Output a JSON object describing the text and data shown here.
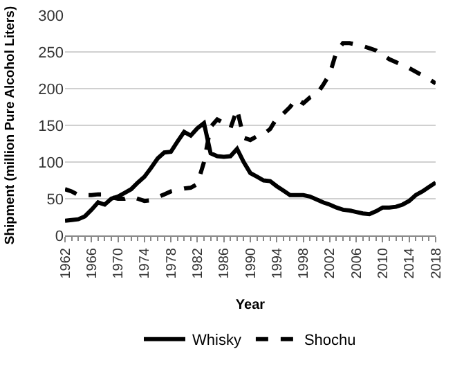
{
  "chart_data": {
    "type": "line",
    "xlabel": "Year",
    "ylabel": "Shipment (million Pure Alcohol Liters)",
    "x": [
      1962,
      1963,
      1964,
      1965,
      1966,
      1967,
      1968,
      1969,
      1970,
      1971,
      1972,
      1973,
      1974,
      1975,
      1976,
      1977,
      1978,
      1979,
      1980,
      1981,
      1982,
      1983,
      1984,
      1985,
      1986,
      1987,
      1988,
      1989,
      1990,
      1991,
      1992,
      1993,
      1994,
      1995,
      1996,
      1997,
      1998,
      1999,
      2000,
      2001,
      2002,
      2003,
      2004,
      2005,
      2006,
      2007,
      2008,
      2009,
      2010,
      2011,
      2012,
      2013,
      2014,
      2015,
      2016,
      2017,
      2018
    ],
    "series": [
      {
        "name": "Whisky",
        "color": "#000000",
        "line_style": "solid",
        "values": [
          20,
          21,
          22,
          26,
          35,
          45,
          42,
          50,
          53,
          58,
          63,
          72,
          80,
          92,
          105,
          113,
          114,
          128,
          141,
          136,
          146,
          153,
          112,
          108,
          107,
          108,
          118,
          100,
          85,
          80,
          75,
          74,
          67,
          61,
          55,
          55,
          55,
          53,
          49,
          45,
          42,
          38,
          35,
          34,
          32,
          30,
          29,
          33,
          38,
          38,
          39,
          42,
          47,
          55,
          60,
          66,
          72
        ]
      },
      {
        "name": "Shochu",
        "color": "#000000",
        "line_style": "dashed",
        "values": [
          63,
          60,
          55,
          55,
          55,
          56,
          56,
          52,
          50,
          50,
          53,
          50,
          47,
          48,
          52,
          56,
          60,
          62,
          64,
          65,
          70,
          100,
          148,
          158,
          153,
          146,
          172,
          133,
          130,
          135,
          138,
          145,
          160,
          166,
          175,
          186,
          180,
          188,
          192,
          205,
          220,
          250,
          262,
          262,
          260,
          258,
          255,
          252,
          246,
          240,
          236,
          232,
          228,
          223,
          218,
          213,
          207
        ]
      }
    ],
    "xlim": [
      1962,
      2018
    ],
    "xticks": [
      1962,
      1966,
      1970,
      1974,
      1978,
      1982,
      1986,
      1990,
      1994,
      1998,
      2002,
      2006,
      2010,
      2014,
      2018
    ],
    "ylim": [
      0,
      300
    ],
    "yticks": [
      0,
      50,
      100,
      150,
      200,
      250,
      300
    ],
    "grid": "y",
    "legend": "bottom",
    "marker": "none"
  }
}
